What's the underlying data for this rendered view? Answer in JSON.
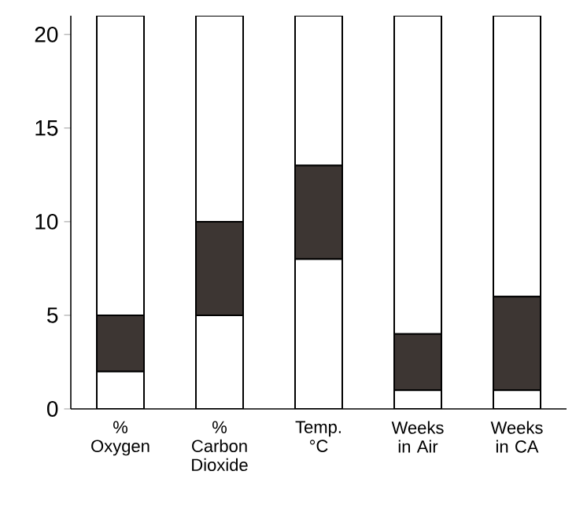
{
  "chart_data": {
    "type": "bar",
    "stacked": true,
    "categories": [
      "% Oxygen",
      "% Carbon Dioxide",
      "Temp. °C",
      "Weeks in Air",
      "Weeks in CA"
    ],
    "series": [
      {
        "color": "#ffffff",
        "values": [
          2,
          5,
          8,
          1,
          1
        ]
      },
      {
        "color": "#3d3633",
        "values": [
          3,
          5,
          5,
          3,
          5
        ]
      },
      {
        "color": "#ffffff",
        "values": [
          16,
          11,
          8,
          17,
          15
        ]
      }
    ],
    "ylim": [
      0,
      21
    ],
    "yticks": [
      0,
      5,
      10,
      15,
      20
    ]
  }
}
